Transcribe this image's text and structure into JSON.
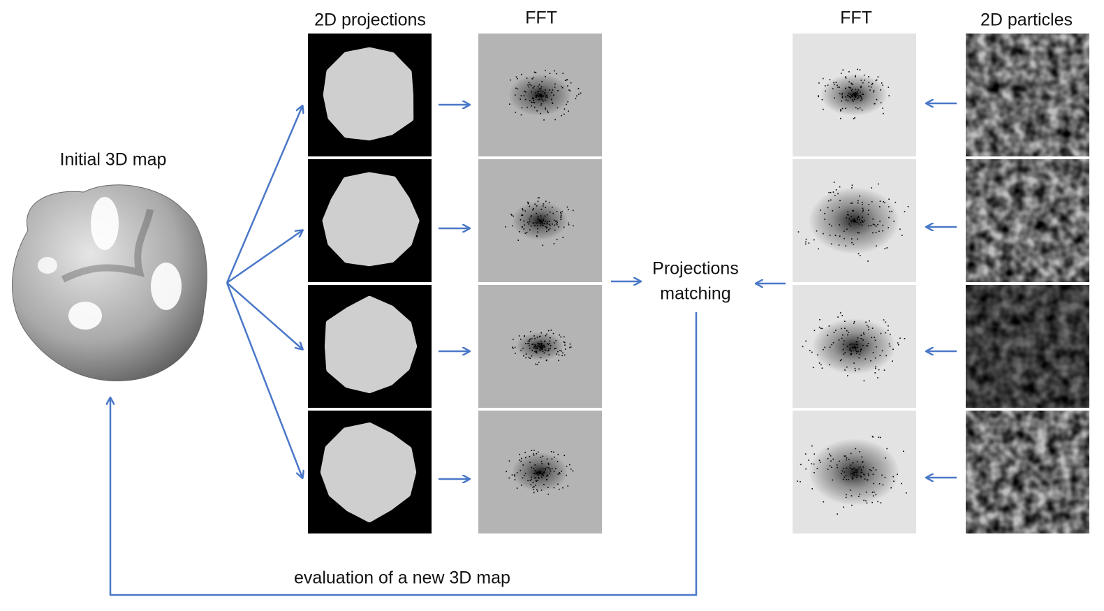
{
  "labels": {
    "initial_map": "Initial 3D map",
    "projections": "2D projections",
    "fft_left": "FFT",
    "fft_right": "FFT",
    "particles": "2D particles",
    "matching_line1": "Projections",
    "matching_line2": "matching",
    "evaluation": "evaluation of a new 3D map"
  }
}
